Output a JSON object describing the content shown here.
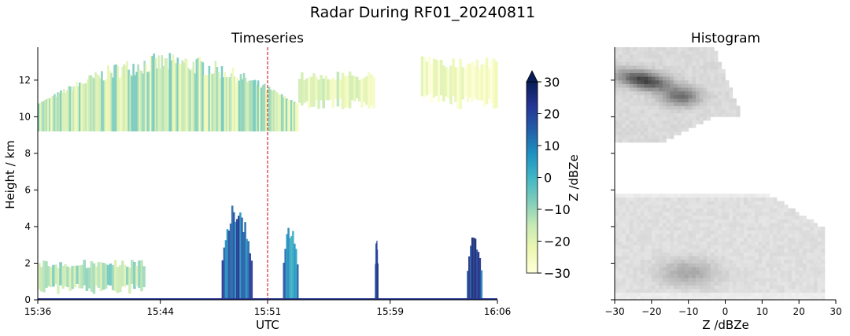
{
  "figure": {
    "title": "Radar During RF01_20240811"
  },
  "chart_data": [
    {
      "type": "heatmap",
      "title": "Timeseries",
      "xlabel": "UTC",
      "ylabel": "Height / km",
      "xticks": [
        "15:36",
        "15:44",
        "15:51",
        "15:59",
        "16:06"
      ],
      "yticks": [
        0,
        2,
        4,
        6,
        8,
        10,
        12
      ],
      "ylim": [
        0,
        13.8
      ],
      "colorbar": {
        "label": "Z /dBZe",
        "ticks": [
          30,
          20,
          10,
          0,
          -10,
          -20,
          -30
        ],
        "range": [
          -30,
          30
        ],
        "colormap": "YlGnBu",
        "extend": "max"
      },
      "marker_line": {
        "time": "15:51",
        "color": "#d62728",
        "style": "dashed"
      },
      "regions": [
        {
          "desc": "upper cloud layer",
          "t0": "15:36",
          "t1": "15:53",
          "z0": 9.2,
          "z1": 13.5,
          "dbz": -15
        },
        {
          "desc": "upper cloud layer 2",
          "t0": "15:53",
          "t1": "15:58",
          "z0": 10.4,
          "z1": 12.5,
          "dbz": -20
        },
        {
          "desc": "upper cloud layer 3",
          "t0": "16:01",
          "t1": "16:06",
          "z0": 10.4,
          "z1": 13.3,
          "dbz": -25
        },
        {
          "desc": "low cloud",
          "t0": "15:36",
          "t1": "15:43",
          "z0": 0.3,
          "z1": 2.2,
          "dbz": -12
        },
        {
          "desc": "convection",
          "t0": "15:48",
          "t1": "15:50",
          "z0": 0,
          "z1": 5.6,
          "dbz": 15
        },
        {
          "desc": "convection 2",
          "t0": "15:52",
          "t1": "15:53",
          "z0": 0,
          "z1": 4.6,
          "dbz": 10
        },
        {
          "desc": "convection 3",
          "t0": "15:58",
          "t1": "15:58",
          "z0": 0,
          "z1": 3.9,
          "dbz": 20
        },
        {
          "desc": "convection 4",
          "t0": "16:04",
          "t1": "16:05",
          "z0": 0,
          "z1": 3.7,
          "dbz": 20
        }
      ]
    },
    {
      "type": "heatmap",
      "title": "Histogram",
      "xlabel": "Z /dBZe",
      "xticks": [
        -30,
        -20,
        -10,
        0,
        10,
        20,
        30
      ],
      "xlim": [
        -30,
        30
      ],
      "colormap": "Greys"
    }
  ]
}
